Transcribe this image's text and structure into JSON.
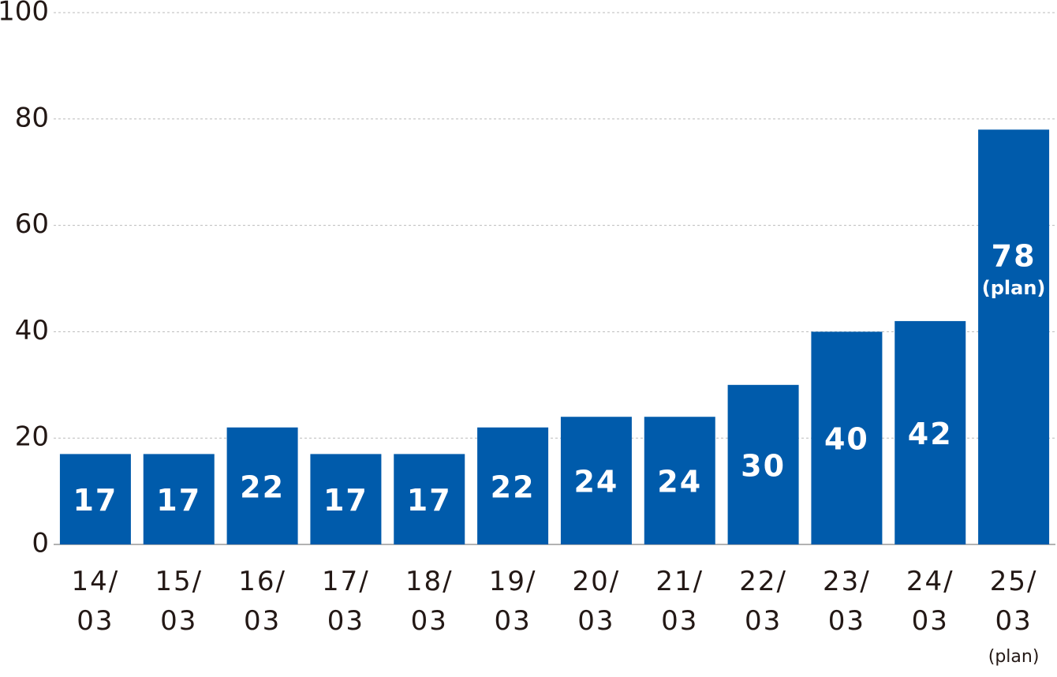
{
  "chart_data": {
    "type": "bar",
    "categories": [
      "14/\n03",
      "15/\n03",
      "16/\n03",
      "17/\n03",
      "18/\n03",
      "19/\n03",
      "20/\n03",
      "21/\n03",
      "22/\n03",
      "23/\n03",
      "24/\n03",
      "25/\n03"
    ],
    "values": [
      17,
      17,
      22,
      17,
      17,
      22,
      24,
      24,
      30,
      40,
      42,
      78
    ],
    "last_category_note": "(plan)",
    "last_value_note": "(plan)",
    "color": "#005bab",
    "ylim": [
      0,
      100
    ],
    "yticks": [
      0,
      20,
      40,
      60,
      80,
      100
    ],
    "grid": true
  }
}
